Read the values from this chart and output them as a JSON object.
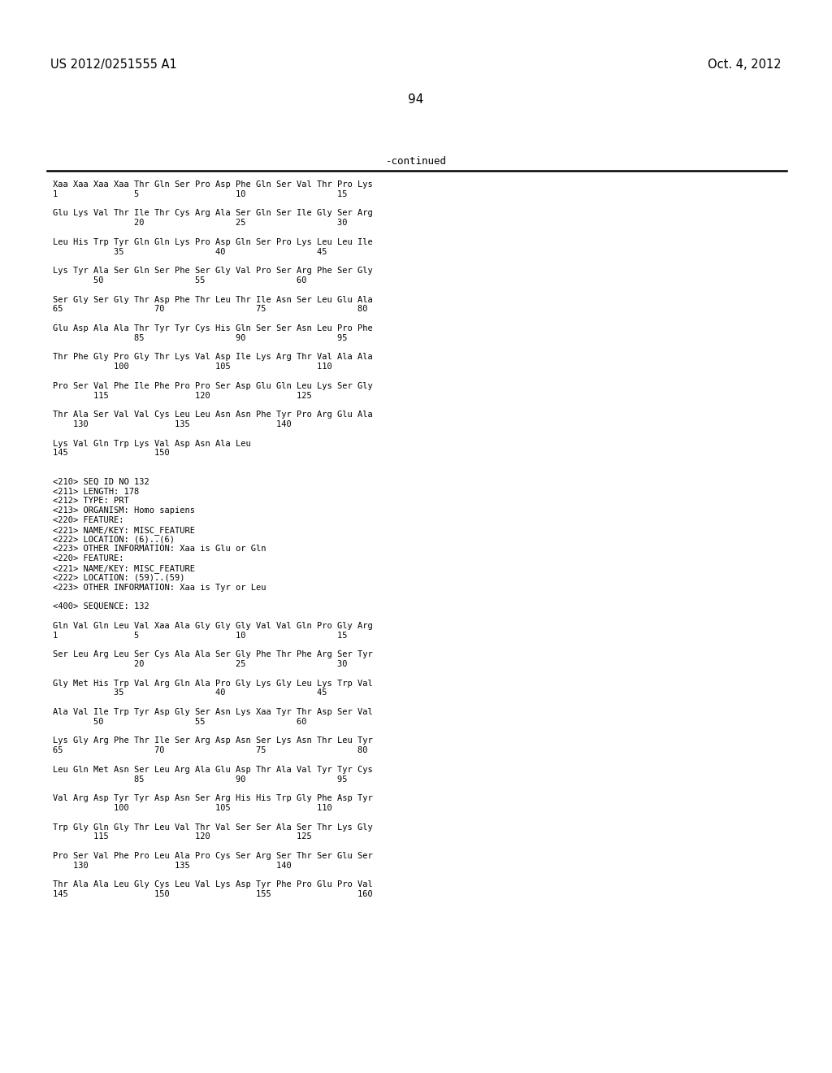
{
  "header_left": "US 2012/0251555 A1",
  "header_right": "Oct. 4, 2012",
  "page_number": "94",
  "continued_label": "-continued",
  "background_color": "#ffffff",
  "text_color": "#000000",
  "content_lines": [
    "Xaa Xaa Xaa Xaa Thr Gln Ser Pro Asp Phe Gln Ser Val Thr Pro Lys",
    "1               5                   10                  15",
    "",
    "Glu Lys Val Thr Ile Thr Cys Arg Ala Ser Gln Ser Ile Gly Ser Arg",
    "                20                  25                  30",
    "",
    "Leu His Trp Tyr Gln Gln Lys Pro Asp Gln Ser Pro Lys Leu Leu Ile",
    "            35                  40                  45",
    "",
    "Lys Tyr Ala Ser Gln Ser Phe Ser Gly Val Pro Ser Arg Phe Ser Gly",
    "        50                  55                  60",
    "",
    "Ser Gly Ser Gly Thr Asp Phe Thr Leu Thr Ile Asn Ser Leu Glu Ala",
    "65                  70                  75                  80",
    "",
    "Glu Asp Ala Ala Thr Tyr Tyr Cys His Gln Ser Ser Asn Leu Pro Phe",
    "                85                  90                  95",
    "",
    "Thr Phe Gly Pro Gly Thr Lys Val Asp Ile Lys Arg Thr Val Ala Ala",
    "            100                 105                 110",
    "",
    "Pro Ser Val Phe Ile Phe Pro Pro Ser Asp Glu Gln Leu Lys Ser Gly",
    "        115                 120                 125",
    "",
    "Thr Ala Ser Val Val Cys Leu Leu Asn Asn Phe Tyr Pro Arg Glu Ala",
    "    130                 135                 140",
    "",
    "Lys Val Gln Trp Lys Val Asp Asn Ala Leu",
    "145                 150",
    "",
    "",
    "<210> SEQ ID NO 132",
    "<211> LENGTH: 178",
    "<212> TYPE: PRT",
    "<213> ORGANISM: Homo sapiens",
    "<220> FEATURE:",
    "<221> NAME/KEY: MISC_FEATURE",
    "<222> LOCATION: (6)..(6)",
    "<223> OTHER INFORMATION: Xaa is Glu or Gln",
    "<220> FEATURE:",
    "<221> NAME/KEY: MISC_FEATURE",
    "<222> LOCATION: (59)..(59)",
    "<223> OTHER INFORMATION: Xaa is Tyr or Leu",
    "",
    "<400> SEQUENCE: 132",
    "",
    "Gln Val Gln Leu Val Xaa Ala Gly Gly Gly Val Val Gln Pro Gly Arg",
    "1               5                   10                  15",
    "",
    "Ser Leu Arg Leu Ser Cys Ala Ala Ser Gly Phe Thr Phe Arg Ser Tyr",
    "                20                  25                  30",
    "",
    "Gly Met His Trp Val Arg Gln Ala Pro Gly Lys Gly Leu Lys Trp Val",
    "            35                  40                  45",
    "",
    "Ala Val Ile Trp Tyr Asp Gly Ser Asn Lys Xaa Tyr Thr Asp Ser Val",
    "        50                  55                  60",
    "",
    "Lys Gly Arg Phe Thr Ile Ser Arg Asp Asn Ser Lys Asn Thr Leu Tyr",
    "65                  70                  75                  80",
    "",
    "Leu Gln Met Asn Ser Leu Arg Ala Glu Asp Thr Ala Val Tyr Tyr Cys",
    "                85                  90                  95",
    "",
    "Val Arg Asp Tyr Tyr Asp Asn Ser Arg His His Trp Gly Phe Asp Tyr",
    "            100                 105                 110",
    "",
    "Trp Gly Gln Gly Thr Leu Val Thr Val Ser Ser Ala Ser Thr Lys Gly",
    "        115                 120                 125",
    "",
    "Pro Ser Val Phe Pro Leu Ala Pro Cys Ser Arg Ser Thr Ser Glu Ser",
    "    130                 135                 140",
    "",
    "Thr Ala Ala Leu Gly Cys Leu Val Lys Asp Tyr Phe Pro Glu Pro Val",
    "145                 150                 155                 160"
  ]
}
